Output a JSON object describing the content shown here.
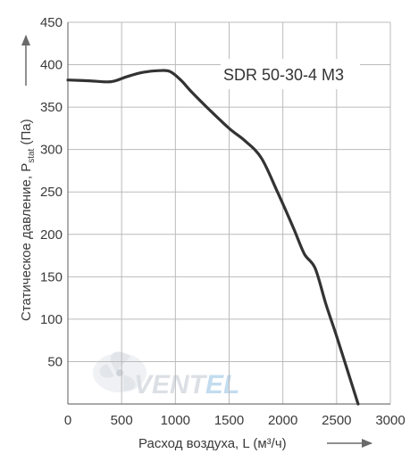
{
  "chart_data": {
    "type": "line",
    "title": "",
    "annotation": "SDR 50-30-4 M3",
    "xlabel": "Расход воздуха, L (м³/ч)",
    "ylabel": "Статическое давление, P",
    "ylabel_sub": "stat",
    "ylabel_unit": " (Па)",
    "xlim": [
      0,
      3000
    ],
    "ylim": [
      0,
      450
    ],
    "x_ticks": [
      0,
      500,
      1000,
      1500,
      2000,
      2500,
      3000
    ],
    "y_ticks": [
      50,
      100,
      150,
      200,
      250,
      300,
      350,
      400,
      450
    ],
    "grid": true,
    "series": [
      {
        "x": [
          0,
          200,
          400,
          550,
          700,
          850,
          950,
          1050,
          1150,
          1300,
          1500,
          1650,
          1800,
          1950,
          2100,
          2200,
          2300,
          2400,
          2500,
          2600,
          2700
        ],
        "y": [
          382,
          381,
          380,
          386,
          391,
          393,
          392,
          382,
          368,
          349,
          325,
          310,
          290,
          250,
          207,
          177,
          160,
          118,
          80,
          40,
          0
        ]
      }
    ],
    "line_color": "#333333",
    "grid_color": "#bbbbbb"
  },
  "watermark": {
    "text_a": "VENT",
    "text_b": "EL",
    "color_a": "#d9dde3",
    "color_b": "#bdd9ee"
  }
}
